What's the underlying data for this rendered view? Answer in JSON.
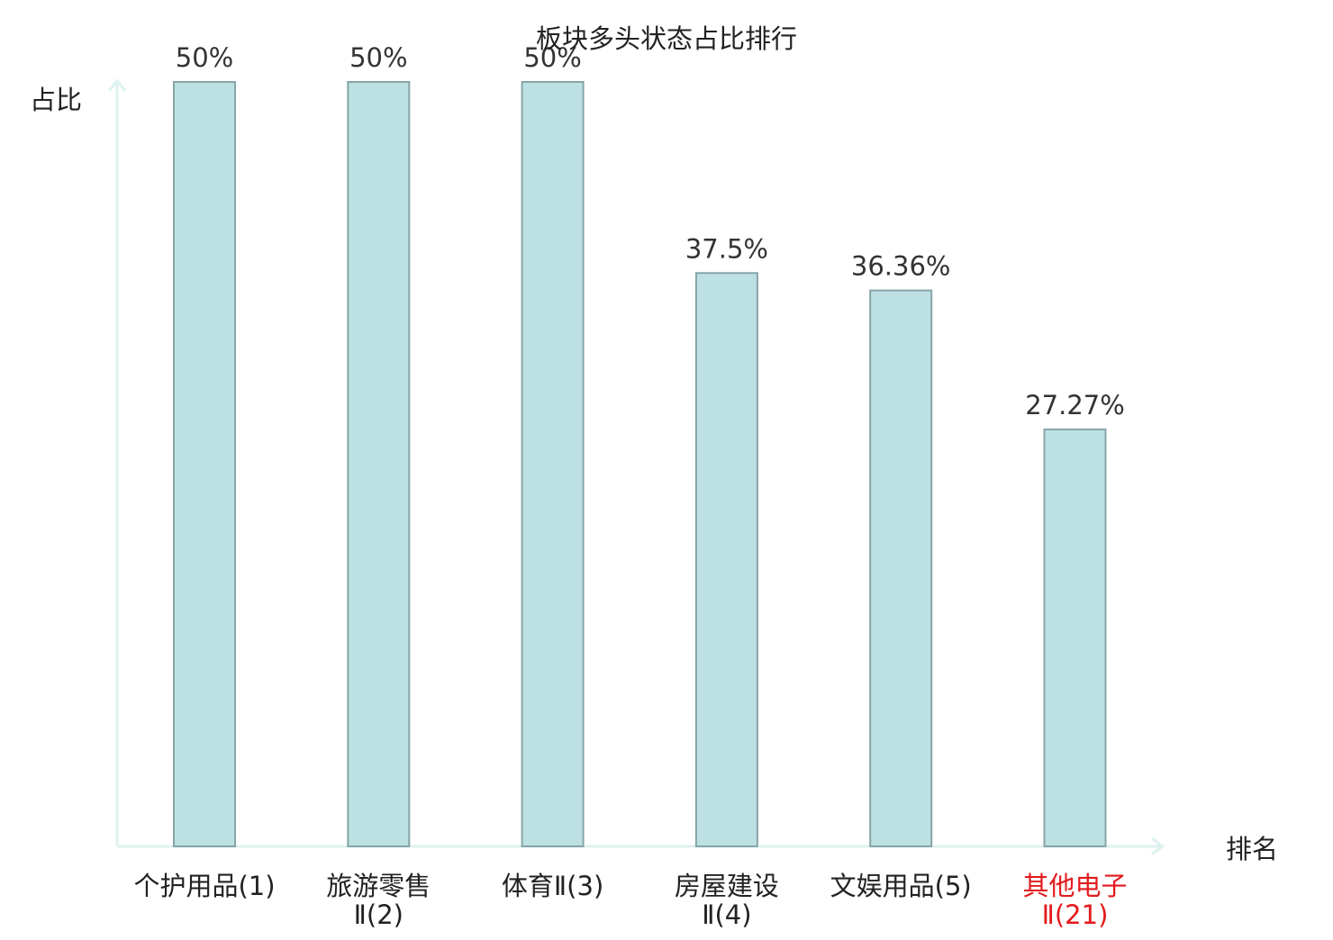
{
  "chart_data": {
    "type": "bar",
    "title": "板块多头状态占比排行",
    "ylabel": "占比",
    "xlabel": "排名",
    "categories": [
      [
        "个护用品(1)"
      ],
      [
        "旅游零售",
        "Ⅱ(2)"
      ],
      [
        "体育Ⅱ(3)"
      ],
      [
        "房屋建设",
        "Ⅱ(4)"
      ],
      [
        "文娱用品(5)"
      ],
      [
        "其他电子",
        "Ⅱ(21)"
      ]
    ],
    "values": [
      50,
      50,
      50,
      37.5,
      36.36,
      27.27
    ],
    "value_labels": [
      "50%",
      "50%",
      "50%",
      "37.5%",
      "36.36%",
      "27.27%"
    ],
    "highlight_index": 5,
    "ylim": [
      0,
      50
    ],
    "grid": false,
    "colors": {
      "bar_fill": "#bde1e3",
      "bar_stroke": "#86a5a8",
      "axis": "#dff2ef",
      "text": "#222222",
      "value_label": "#333333",
      "highlight": "#e31a1c"
    }
  }
}
